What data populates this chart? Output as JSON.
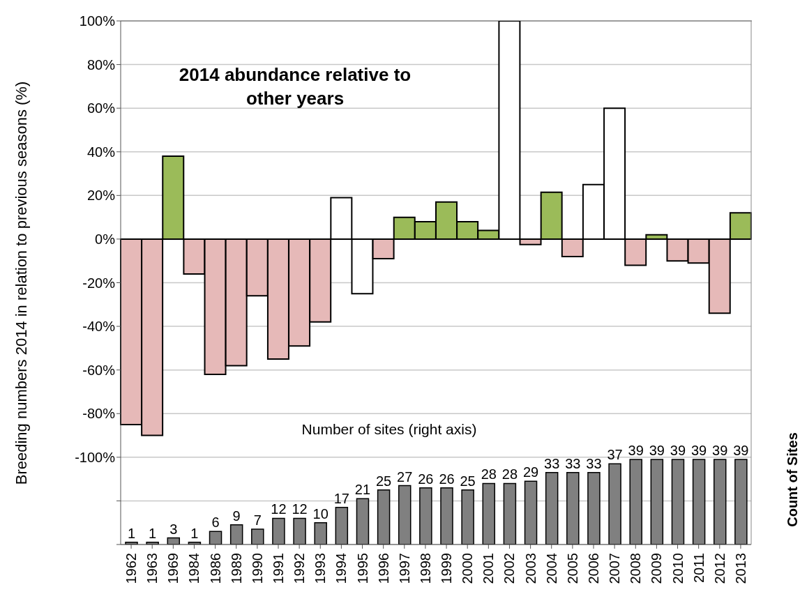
{
  "chart_data": {
    "type": "bar",
    "title": "2014 abundance relative to other years",
    "ylabel": "Breeding numbers 2014 in relation to previous seasons (%)",
    "y2label": "Count of Sites",
    "annotations": [
      "Number of sites (right axis)"
    ],
    "categories": [
      "1962",
      "1963",
      "1969",
      "1984",
      "1986",
      "1989",
      "1990",
      "1991",
      "1992",
      "1993",
      "1994",
      "1995",
      "1996",
      "1997",
      "1998",
      "1999",
      "2000",
      "2001",
      "2002",
      "2003",
      "2004",
      "2005",
      "2006",
      "2007",
      "2008",
      "2009",
      "2010",
      "2011",
      "2012",
      "2013"
    ],
    "series": [
      {
        "values": [
          -85,
          -90,
          38,
          -16,
          -62,
          -58,
          -26,
          -55,
          -49,
          -38,
          19,
          -25,
          -9,
          10,
          8,
          17,
          8,
          4,
          100,
          -2.5,
          21.5,
          -8,
          25,
          60,
          -12,
          2,
          -10,
          -11,
          -34,
          12
        ],
        "colors": [
          "#e6b9b8",
          "#e6b9b8",
          "#9bbb59",
          "#e6b9b8",
          "#e6b9b8",
          "#e6b9b8",
          "#e6b9b8",
          "#e6b9b8",
          "#e6b9b8",
          "#e6b9b8",
          "#ffffff",
          "#ffffff",
          "#e6b9b8",
          "#9bbb59",
          "#9bbb59",
          "#9bbb59",
          "#9bbb59",
          "#9bbb59",
          "#ffffff",
          "#e6b9b8",
          "#9bbb59",
          "#e6b9b8",
          "#ffffff",
          "#ffffff",
          "#e6b9b8",
          "#9bbb59",
          "#e6b9b8",
          "#e6b9b8",
          "#e6b9b8",
          "#9bbb59"
        ]
      },
      {
        "axis": "y2",
        "color": "#808080",
        "data_labels": true,
        "values": [
          1,
          1,
          3,
          1,
          6,
          9,
          7,
          12,
          12,
          10,
          17,
          21,
          25,
          27,
          26,
          26,
          25,
          28,
          28,
          29,
          33,
          33,
          33,
          37,
          39,
          39,
          39,
          39,
          39,
          39
        ]
      }
    ],
    "ylim": [
      -140,
      100
    ],
    "yticks": [
      {
        "value": 100,
        "label": "100%"
      },
      {
        "value": 80,
        "label": "80%"
      },
      {
        "value": 60,
        "label": "60%"
      },
      {
        "value": 40,
        "label": "40%"
      },
      {
        "value": 20,
        "label": "20%"
      },
      {
        "value": 0,
        "label": "0%"
      },
      {
        "value": -20,
        "label": "-20%"
      },
      {
        "value": -40,
        "label": "-40%"
      },
      {
        "value": -60,
        "label": "-60%"
      },
      {
        "value": -80,
        "label": "-80%"
      },
      {
        "value": -100,
        "label": "-100%"
      },
      {
        "value": -120,
        "label": null
      },
      {
        "value": -140,
        "label": null
      }
    ],
    "y2lim": [
      0,
      240
    ],
    "grid": "y"
  }
}
